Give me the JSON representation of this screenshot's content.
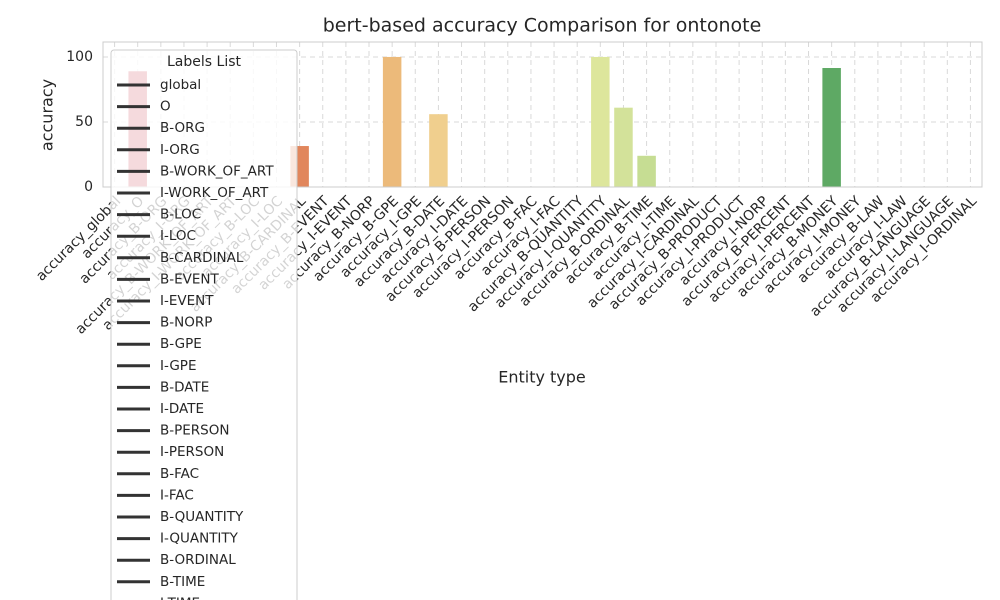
{
  "chart_data": {
    "type": "bar",
    "title": "bert-based accuracy Comparison for ontonote",
    "x_label": "Entity type",
    "y_label": "accuracy",
    "categories": [
      "accuracy_global",
      "accuracy_O",
      "accuracy_B-ORG",
      "accuracy_I-ORG",
      "accuracy_B-WORK_OF_ART",
      "accuracy_I-WORK_OF_ART",
      "accuracy_B-LOC",
      "accuracy_I-LOC",
      "accuracy_B-CARDINAL",
      "accuracy_B-EVENT",
      "accuracy_I-EVENT",
      "accuracy_B-NORP",
      "accuracy_B-GPE",
      "accuracy_I-GPE",
      "accuracy_B-DATE",
      "accuracy_I-DATE",
      "accuracy_B-PERSON",
      "accuracy_I-PERSON",
      "accuracy_B-FAC",
      "accuracy_I-FAC",
      "accuracy_B-QUANTITY",
      "accuracy_I-QUANTITY",
      "accuracy_B-ORDINAL",
      "accuracy_B-TIME",
      "accuracy_I-TIME",
      "accuracy_I-CARDINAL",
      "accuracy_B-PRODUCT",
      "accuracy_I-PRODUCT",
      "accuracy_I-NORP",
      "accuracy_B-PERCENT",
      "accuracy_I-PERCENT",
      "accuracy_B-MONEY",
      "accuracy_I-MONEY",
      "accuracy_B-LAW",
      "accuracy_I-LAW",
      "accuracy_B-LANGUAGE",
      "accuracy_I-LANGUAGE",
      "accuracy_I-ORDINAL"
    ],
    "values": [
      0,
      89,
      0,
      0,
      0,
      0,
      0,
      0,
      31.5,
      0,
      0,
      0,
      100,
      0,
      56,
      0,
      0,
      0,
      0,
      0,
      0,
      100,
      61,
      24,
      0,
      0,
      0,
      0,
      0,
      0,
      0,
      91.5,
      0,
      0,
      0,
      0,
      0,
      0
    ],
    "colors": [
      "#c03b52",
      "#cb4654",
      "#d35154",
      "#da5c53",
      "#df6753",
      "#e27155",
      "#e47b57",
      "#e2825a",
      "#e1865c",
      "#e59a66",
      "#e8a56d",
      "#ebb074",
      "#ecba7a",
      "#eec483",
      "#f0cf8e",
      "#f1d797",
      "#f2dfa0",
      "#f2e6a8",
      "#f0eaab",
      "#eaeaa4",
      "#e3e8a0",
      "#dde69c",
      "#d3e29a",
      "#c6dd93",
      "#b7d68f",
      "#a6ce8c",
      "#95c78a",
      "#84be88",
      "#74b586",
      "#66ad84",
      "#5aa67a",
      "#5ea964",
      "#5aa08a",
      "#5590a4",
      "#5480ad",
      "#5a70aa",
      "#6461a4",
      "#6c569e"
    ],
    "ylim": [
      0,
      111.5
    ],
    "yticks": [
      0,
      50,
      100
    ],
    "grid": true,
    "legend": {
      "title": "Labels List",
      "position": "upper left",
      "color": "#333333",
      "items": [
        "global",
        "O",
        "B-ORG",
        "I-ORG",
        "B-WORK_OF_ART",
        "I-WORK_OF_ART",
        "B-LOC",
        "I-LOC",
        "B-CARDINAL",
        "B-EVENT",
        "I-EVENT",
        "B-NORP",
        "B-GPE",
        "I-GPE",
        "B-DATE",
        "I-DATE",
        "B-PERSON",
        "I-PERSON",
        "B-FAC",
        "I-FAC",
        "B-QUANTITY",
        "I-QUANTITY",
        "B-ORDINAL",
        "B-TIME",
        "I-TIME"
      ]
    }
  }
}
